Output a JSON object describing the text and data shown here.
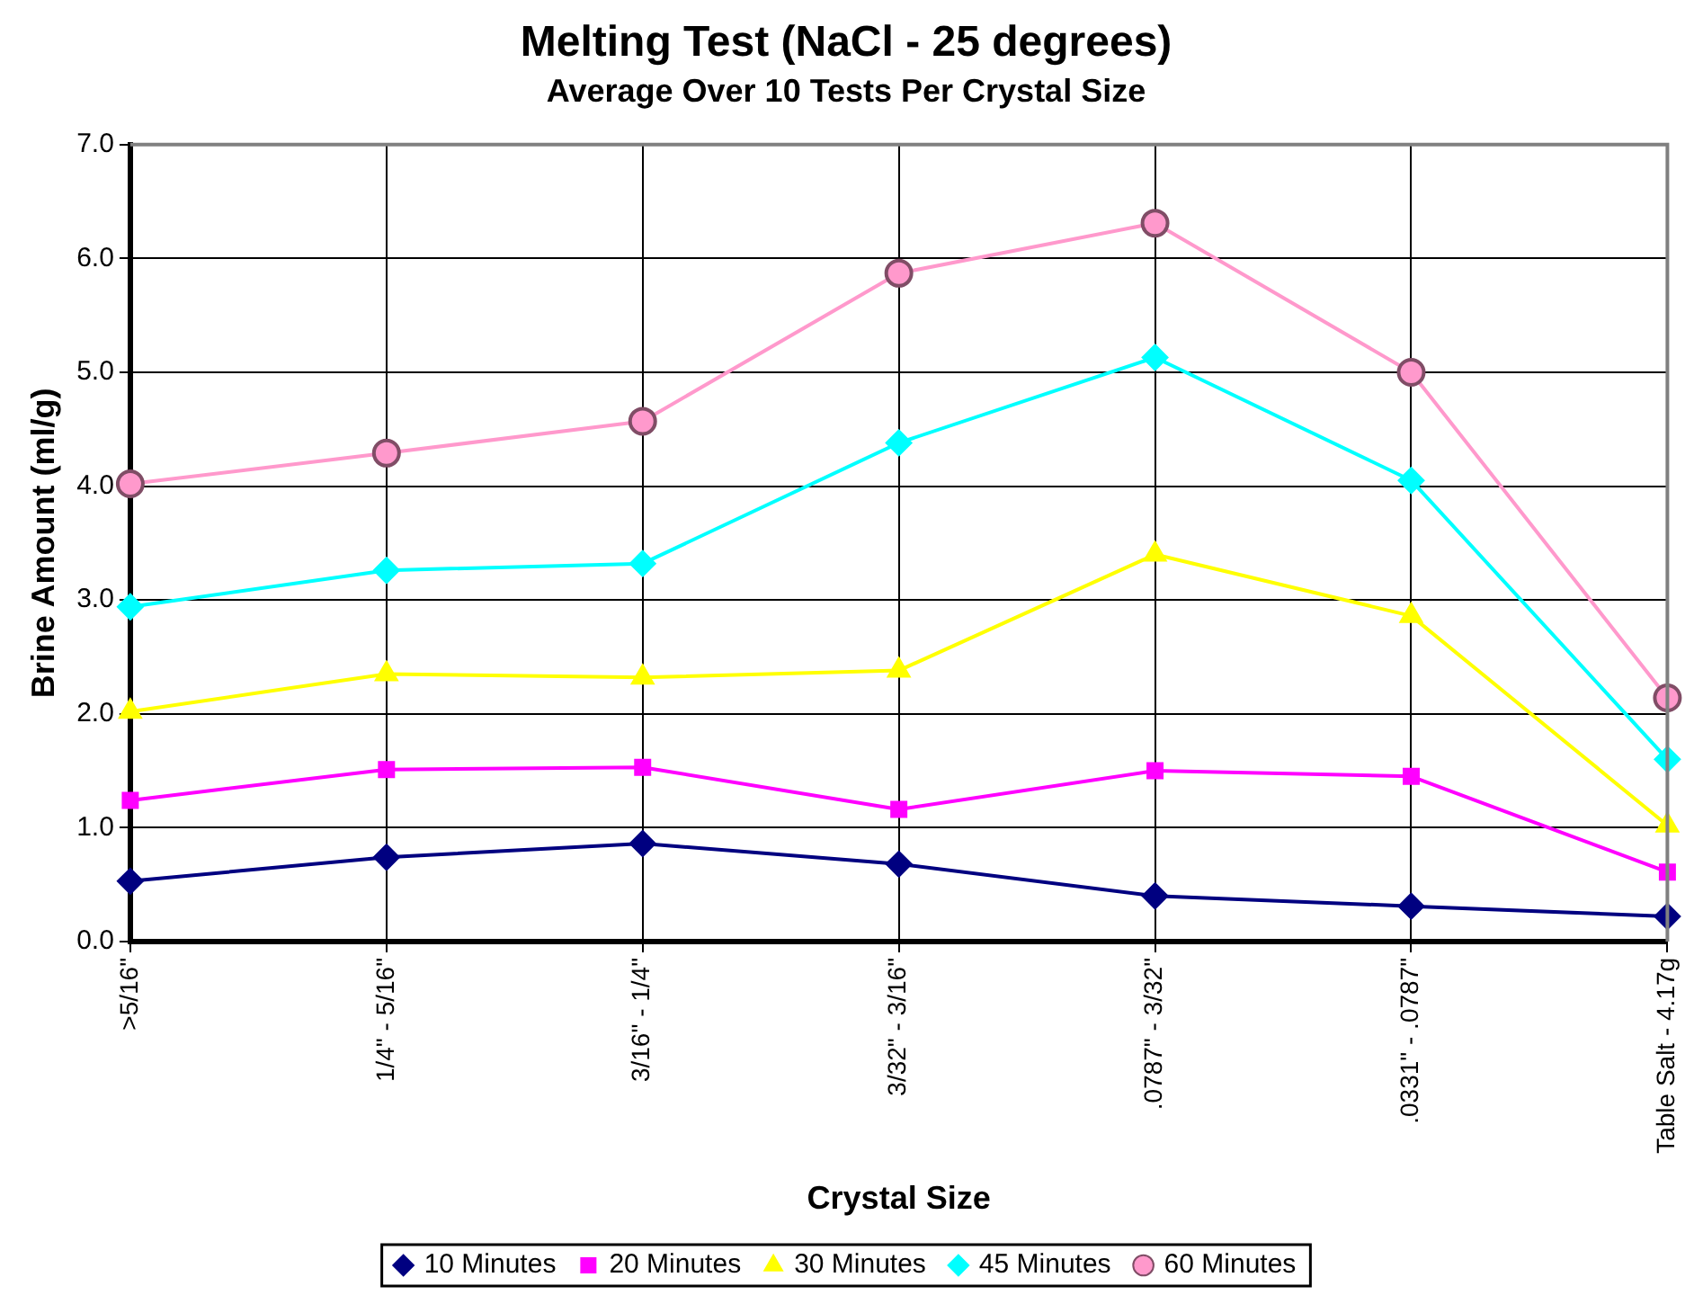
{
  "chart_data": {
    "type": "line",
    "title": "Melting Test (NaCl - 25 degrees)",
    "subtitle": "Average Over 10 Tests Per Crystal Size",
    "xlabel": "Crystal Size",
    "ylabel": "Brine Amount (ml/g)",
    "categories": [
      ">5/16\"",
      "1/4\" - 5/16\"",
      "3/16\" - 1/4\"",
      "3/32\" - 3/16\"",
      ".0787\" - 3/32\"",
      ".0331\" - .0787\"",
      "Table Salt - 4.17g"
    ],
    "series": [
      {
        "name": "10 Minutes",
        "color": "#000080",
        "marker": "diamond",
        "values": [
          0.53,
          0.74,
          0.86,
          0.68,
          0.4,
          0.31,
          0.22
        ]
      },
      {
        "name": "20 Minutes",
        "color": "#ff00ff",
        "marker": "square",
        "values": [
          1.24,
          1.51,
          1.53,
          1.16,
          1.5,
          1.45,
          0.61
        ]
      },
      {
        "name": "30 Minutes",
        "color": "#ffff00",
        "marker": "triangle",
        "values": [
          2.02,
          2.35,
          2.32,
          2.38,
          3.4,
          2.86,
          1.02
        ]
      },
      {
        "name": "45 Minutes",
        "color": "#00ffff",
        "marker": "diamond",
        "values": [
          2.94,
          3.26,
          3.32,
          4.38,
          5.13,
          4.05,
          1.6
        ]
      },
      {
        "name": "60 Minutes",
        "color": "#ff99cc",
        "marker": "circle",
        "values": [
          4.02,
          4.29,
          4.57,
          5.87,
          6.31,
          5.0,
          2.14
        ]
      }
    ],
    "ylim": [
      0,
      7
    ],
    "yticks": [
      {
        "value": 0,
        "label": "0.0"
      },
      {
        "value": 1,
        "label": "1.0"
      },
      {
        "value": 2,
        "label": "2.0"
      },
      {
        "value": 3,
        "label": "3.0"
      },
      {
        "value": 4,
        "label": "4.0"
      },
      {
        "value": 5,
        "label": "5.0"
      },
      {
        "value": 6,
        "label": "6.0"
      },
      {
        "value": 7,
        "label": "7.0"
      }
    ],
    "grid": true,
    "legend": "bottom",
    "line_style": "solid"
  }
}
